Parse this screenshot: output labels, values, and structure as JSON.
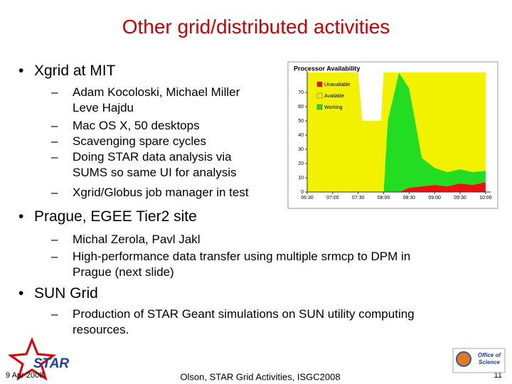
{
  "title": "Other grid/distributed activities",
  "bullets": [
    {
      "text": "Xgrid at MIT",
      "items": [
        [
          "Adam Kocoloski, Michael Miller",
          "Leve Hajdu"
        ],
        [
          "Mac OS X, 50 desktops"
        ],
        [
          "Scavenging spare cycles"
        ],
        [
          "Doing STAR data analysis via",
          "SUMS so same UI for analysis"
        ],
        [
          "Xgrid/Globus job manager in test"
        ]
      ]
    },
    {
      "text": "Prague, EGEE Tier2 site",
      "items": [
        [
          "Michal Zerola, Pavl Jakl"
        ],
        [
          "High-performance data transfer using multiple srmcp to DPM in",
          "Prague (next slide)"
        ]
      ]
    },
    {
      "text": "SUN Grid",
      "items": [
        [
          "Production of STAR Geant simulations on SUN utility computing",
          "resources."
        ]
      ]
    }
  ],
  "chart_data": {
    "type": "stacked_area",
    "title": "Processor Availability",
    "x": [
      6.5,
      7.0,
      7.5,
      7.58,
      7.95,
      8.0,
      8.08,
      8.3,
      8.5,
      8.75,
      9.0,
      9.25,
      9.5,
      9.75,
      10.0
    ],
    "series": [
      {
        "name": "Unavailable",
        "color": "#ee1111",
        "values": [
          0,
          0,
          0,
          0,
          0,
          0,
          0,
          0,
          3,
          4,
          5,
          4,
          6,
          5,
          7
        ]
      },
      {
        "name": "Available",
        "color": "#f2f200",
        "values": [
          84,
          84,
          84,
          50,
          50,
          84,
          34,
          0,
          11,
          60,
          67,
          70,
          68,
          70,
          69
        ]
      },
      {
        "name": "Working",
        "color": "#22dd22",
        "values": [
          0,
          0,
          0,
          0,
          0,
          0,
          50,
          84,
          70,
          20,
          12,
          10,
          10,
          9,
          8
        ]
      }
    ],
    "xlim": [
      6.5,
      10.1
    ],
    "xticks": [
      {
        "value": 6.5,
        "label": "06:30"
      },
      {
        "value": 7.0,
        "label": "07:00"
      },
      {
        "value": 7.5,
        "label": "07:30"
      },
      {
        "value": 8.0,
        "label": "08:00"
      },
      {
        "value": 8.5,
        "label": "08:30"
      },
      {
        "value": 9.0,
        "label": "09:00"
      },
      {
        "value": 9.5,
        "label": "09:30"
      },
      {
        "value": 10.0,
        "label": "10:00"
      }
    ],
    "ylim": [
      0,
      85
    ],
    "yticks": [
      0,
      10,
      20,
      30,
      40,
      50,
      60,
      70
    ]
  },
  "footer": {
    "logo": "STAR",
    "date": "9 Apr 2008",
    "center": "Olson, STAR Grid Activities, ISGC2008",
    "page": "11",
    "logo_right": [
      "Office of",
      "Science"
    ]
  }
}
